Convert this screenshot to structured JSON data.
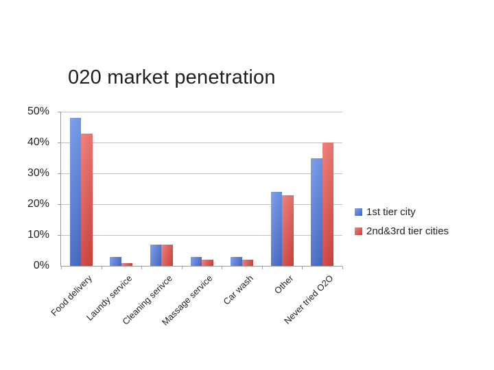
{
  "title": "020 market penetration",
  "chart_data": {
    "type": "bar",
    "title": "020 market penetration",
    "categories": [
      "Food delivery",
      "Laundy service",
      "Cleaning serivce",
      "Massage service",
      "Car wash",
      "Other",
      "Never tried O2O"
    ],
    "series": [
      {
        "name": "1st tier city",
        "color_light": "#7fa0ec",
        "color_dark": "#4465be",
        "values": [
          48,
          3,
          7,
          3,
          3,
          24,
          35
        ]
      },
      {
        "name": "2nd&3rd tier cities",
        "color_light": "#f0837d",
        "color_dark": "#c63f3a",
        "values": [
          43,
          1,
          7,
          2,
          2,
          23,
          40
        ]
      }
    ],
    "xlabel": "",
    "ylabel": "",
    "y_ticks": [
      "0%",
      "10%",
      "20%",
      "30%",
      "40%",
      "50%"
    ],
    "ylim": [
      0,
      50
    ],
    "y_step": 10,
    "grid": true,
    "legend_position": "right",
    "gridline_color": "#bfbfbf",
    "axis_color": "#9a9a9a",
    "text_color": "#1f1f1f",
    "background_color": "#ffffff"
  }
}
